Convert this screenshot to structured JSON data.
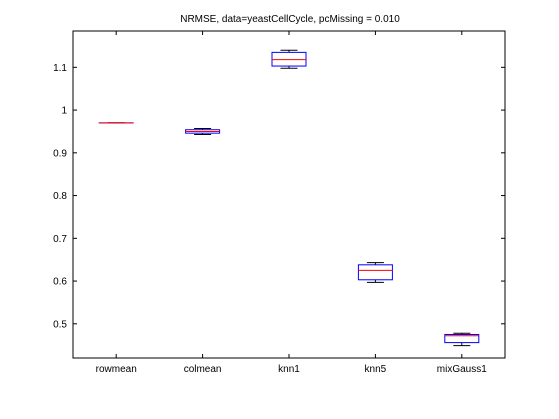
{
  "chart_data": {
    "type": "box",
    "title": "NRMSE, data=yeastCellCycle, pcMissing = 0.010",
    "xlabel": "",
    "ylabel": "",
    "ylim": [
      0.42,
      1.185
    ],
    "yticks": [
      0.5,
      0.6,
      0.7,
      0.8,
      0.9,
      1,
      1.1
    ],
    "ytick_labels": [
      "0.5",
      "0.6",
      "0.7",
      "0.8",
      "0.9",
      "1",
      "1.1"
    ],
    "categories": [
      "rowmean",
      "colmean",
      "knn1",
      "knn5",
      "mixGauss1"
    ],
    "boxes": [
      {
        "name": "rowmean",
        "whisker_low": 0.97,
        "q1": 0.97,
        "median": 0.97,
        "q3": 0.97,
        "whisker_high": 0.97
      },
      {
        "name": "colmean",
        "whisker_low": 0.943,
        "q1": 0.946,
        "median": 0.95,
        "q3": 0.954,
        "whisker_high": 0.957
      },
      {
        "name": "knn1",
        "whisker_low": 1.098,
        "q1": 1.103,
        "median": 1.118,
        "q3": 1.135,
        "whisker_high": 1.14
      },
      {
        "name": "knn5",
        "whisker_low": 0.597,
        "q1": 0.603,
        "median": 0.625,
        "q3": 0.638,
        "whisker_high": 0.643
      },
      {
        "name": "mixGauss1",
        "whisker_low": 0.449,
        "q1": 0.456,
        "median": 0.472,
        "q3": 0.475,
        "whisker_high": 0.478
      }
    ],
    "grid": false,
    "colors": {
      "box": "#0000ff",
      "median": "#ff0000",
      "whisker": "#000000",
      "axis": "#000000"
    }
  }
}
